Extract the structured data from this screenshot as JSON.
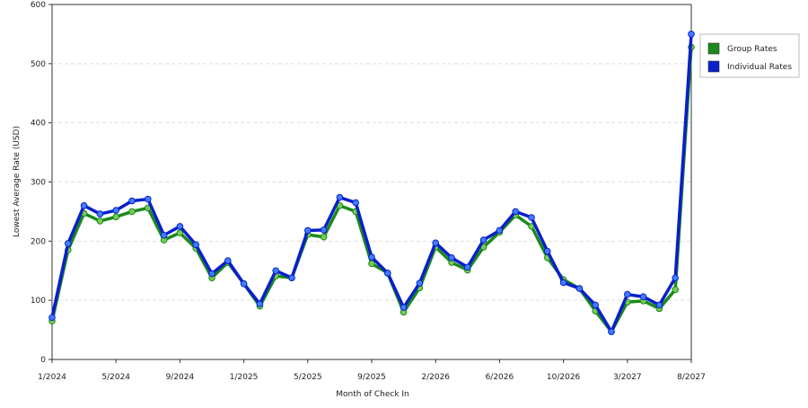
{
  "chart_data": {
    "type": "line",
    "x_label": "Month of Check In",
    "y_label": "Lowest Average Rate (USD)",
    "categories": [
      "1/2024",
      null,
      null,
      null,
      "5/2024",
      null,
      null,
      null,
      "9/2024",
      null,
      null,
      null,
      "1/2025",
      null,
      null,
      null,
      "5/2025",
      null,
      null,
      null,
      "9/2025",
      null,
      null,
      null,
      "2/2026",
      null,
      null,
      null,
      "6/2026",
      null,
      null,
      null,
      "10/2026",
      null,
      null,
      null,
      "3/2027",
      null,
      null,
      null,
      "8/2027"
    ],
    "series": [
      {
        "name": "Group Rates",
        "color": "#1a8a1a",
        "marker_color": "#77cc55",
        "values": [
          65,
          185,
          247,
          234,
          241,
          250,
          256,
          202,
          214,
          188,
          138,
          164,
          128,
          90,
          141,
          138,
          211,
          207,
          260,
          250,
          162,
          146,
          80,
          121,
          190,
          164,
          151,
          190,
          215,
          244,
          225,
          172,
          135,
          120,
          82,
          47,
          97,
          99,
          86,
          118,
          528
        ]
      },
      {
        "name": "Individual Rates",
        "color": "#0a1fcc",
        "marker_color": "#3f7fff",
        "values": [
          71,
          196,
          260,
          246,
          252,
          268,
          271,
          210,
          225,
          194,
          145,
          167,
          128,
          94,
          150,
          138,
          218,
          219,
          274,
          265,
          173,
          146,
          88,
          129,
          197,
          172,
          156,
          202,
          218,
          250,
          240,
          183,
          130,
          120,
          92,
          47,
          110,
          106,
          92,
          138,
          550
        ]
      }
    ],
    "ylim": [
      0,
      600
    ],
    "yticks": [
      0,
      100,
      200,
      300,
      400,
      500,
      600
    ],
    "grid": true,
    "legend": "right"
  }
}
